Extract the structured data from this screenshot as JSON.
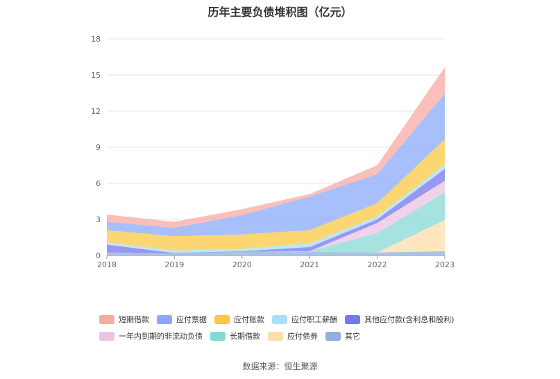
{
  "chart_data": {
    "type": "area",
    "stacked": true,
    "title": "历年主要负债堆积图（亿元）",
    "x": [
      "2018",
      "2019",
      "2020",
      "2021",
      "2022",
      "2023"
    ],
    "ylim": [
      0,
      18
    ],
    "yticks": [
      0,
      3,
      6,
      9,
      12,
      15,
      18
    ],
    "grid": true,
    "legend_position": "bottom",
    "series": [
      {
        "name": "其它",
        "color": "#8fb0dc",
        "values": [
          0.25,
          0.15,
          0.3,
          0.3,
          0.25,
          0.35
        ]
      },
      {
        "name": "应付债券",
        "color": "#fddea8",
        "values": [
          0,
          0,
          0,
          0,
          0,
          2.6
        ]
      },
      {
        "name": "长期借款",
        "color": "#87d8d5",
        "values": [
          0,
          0,
          0,
          0.05,
          1.6,
          2.3
        ]
      },
      {
        "name": "一年内到期的非流动负债",
        "color": "#ecc3e3",
        "values": [
          0,
          0,
          0,
          0,
          0.85,
          0.95
        ]
      },
      {
        "name": "其他应付款(含利息和股利)",
        "color": "#7676ee",
        "values": [
          0.65,
          0.05,
          0.05,
          0.35,
          0.3,
          1.0
        ]
      },
      {
        "name": "应付职工薪酬",
        "color": "#a6dff6",
        "values": [
          0.2,
          0.2,
          0.2,
          0.3,
          0.25,
          0.35
        ]
      },
      {
        "name": "应付账款",
        "color": "#fbc843",
        "values": [
          1.0,
          1.2,
          1.2,
          1.1,
          1.1,
          2.1
        ]
      },
      {
        "name": "应付票据",
        "color": "#8aa9fa",
        "values": [
          0.7,
          0.7,
          1.6,
          2.8,
          2.4,
          3.8
        ]
      },
      {
        "name": "短期借款",
        "color": "#f8a9a2",
        "values": [
          0.6,
          0.5,
          0.5,
          0.2,
          0.75,
          2.2
        ]
      }
    ],
    "legend_order": [
      "短期借款",
      "应付票据",
      "应付账款",
      "应付职工薪酬",
      "其他应付款(含利息和股利)",
      "一年内到期的非流动负债",
      "长期借款",
      "应付债券",
      "其它"
    ]
  },
  "footer": {
    "source": "数据来源：恒生聚源"
  }
}
